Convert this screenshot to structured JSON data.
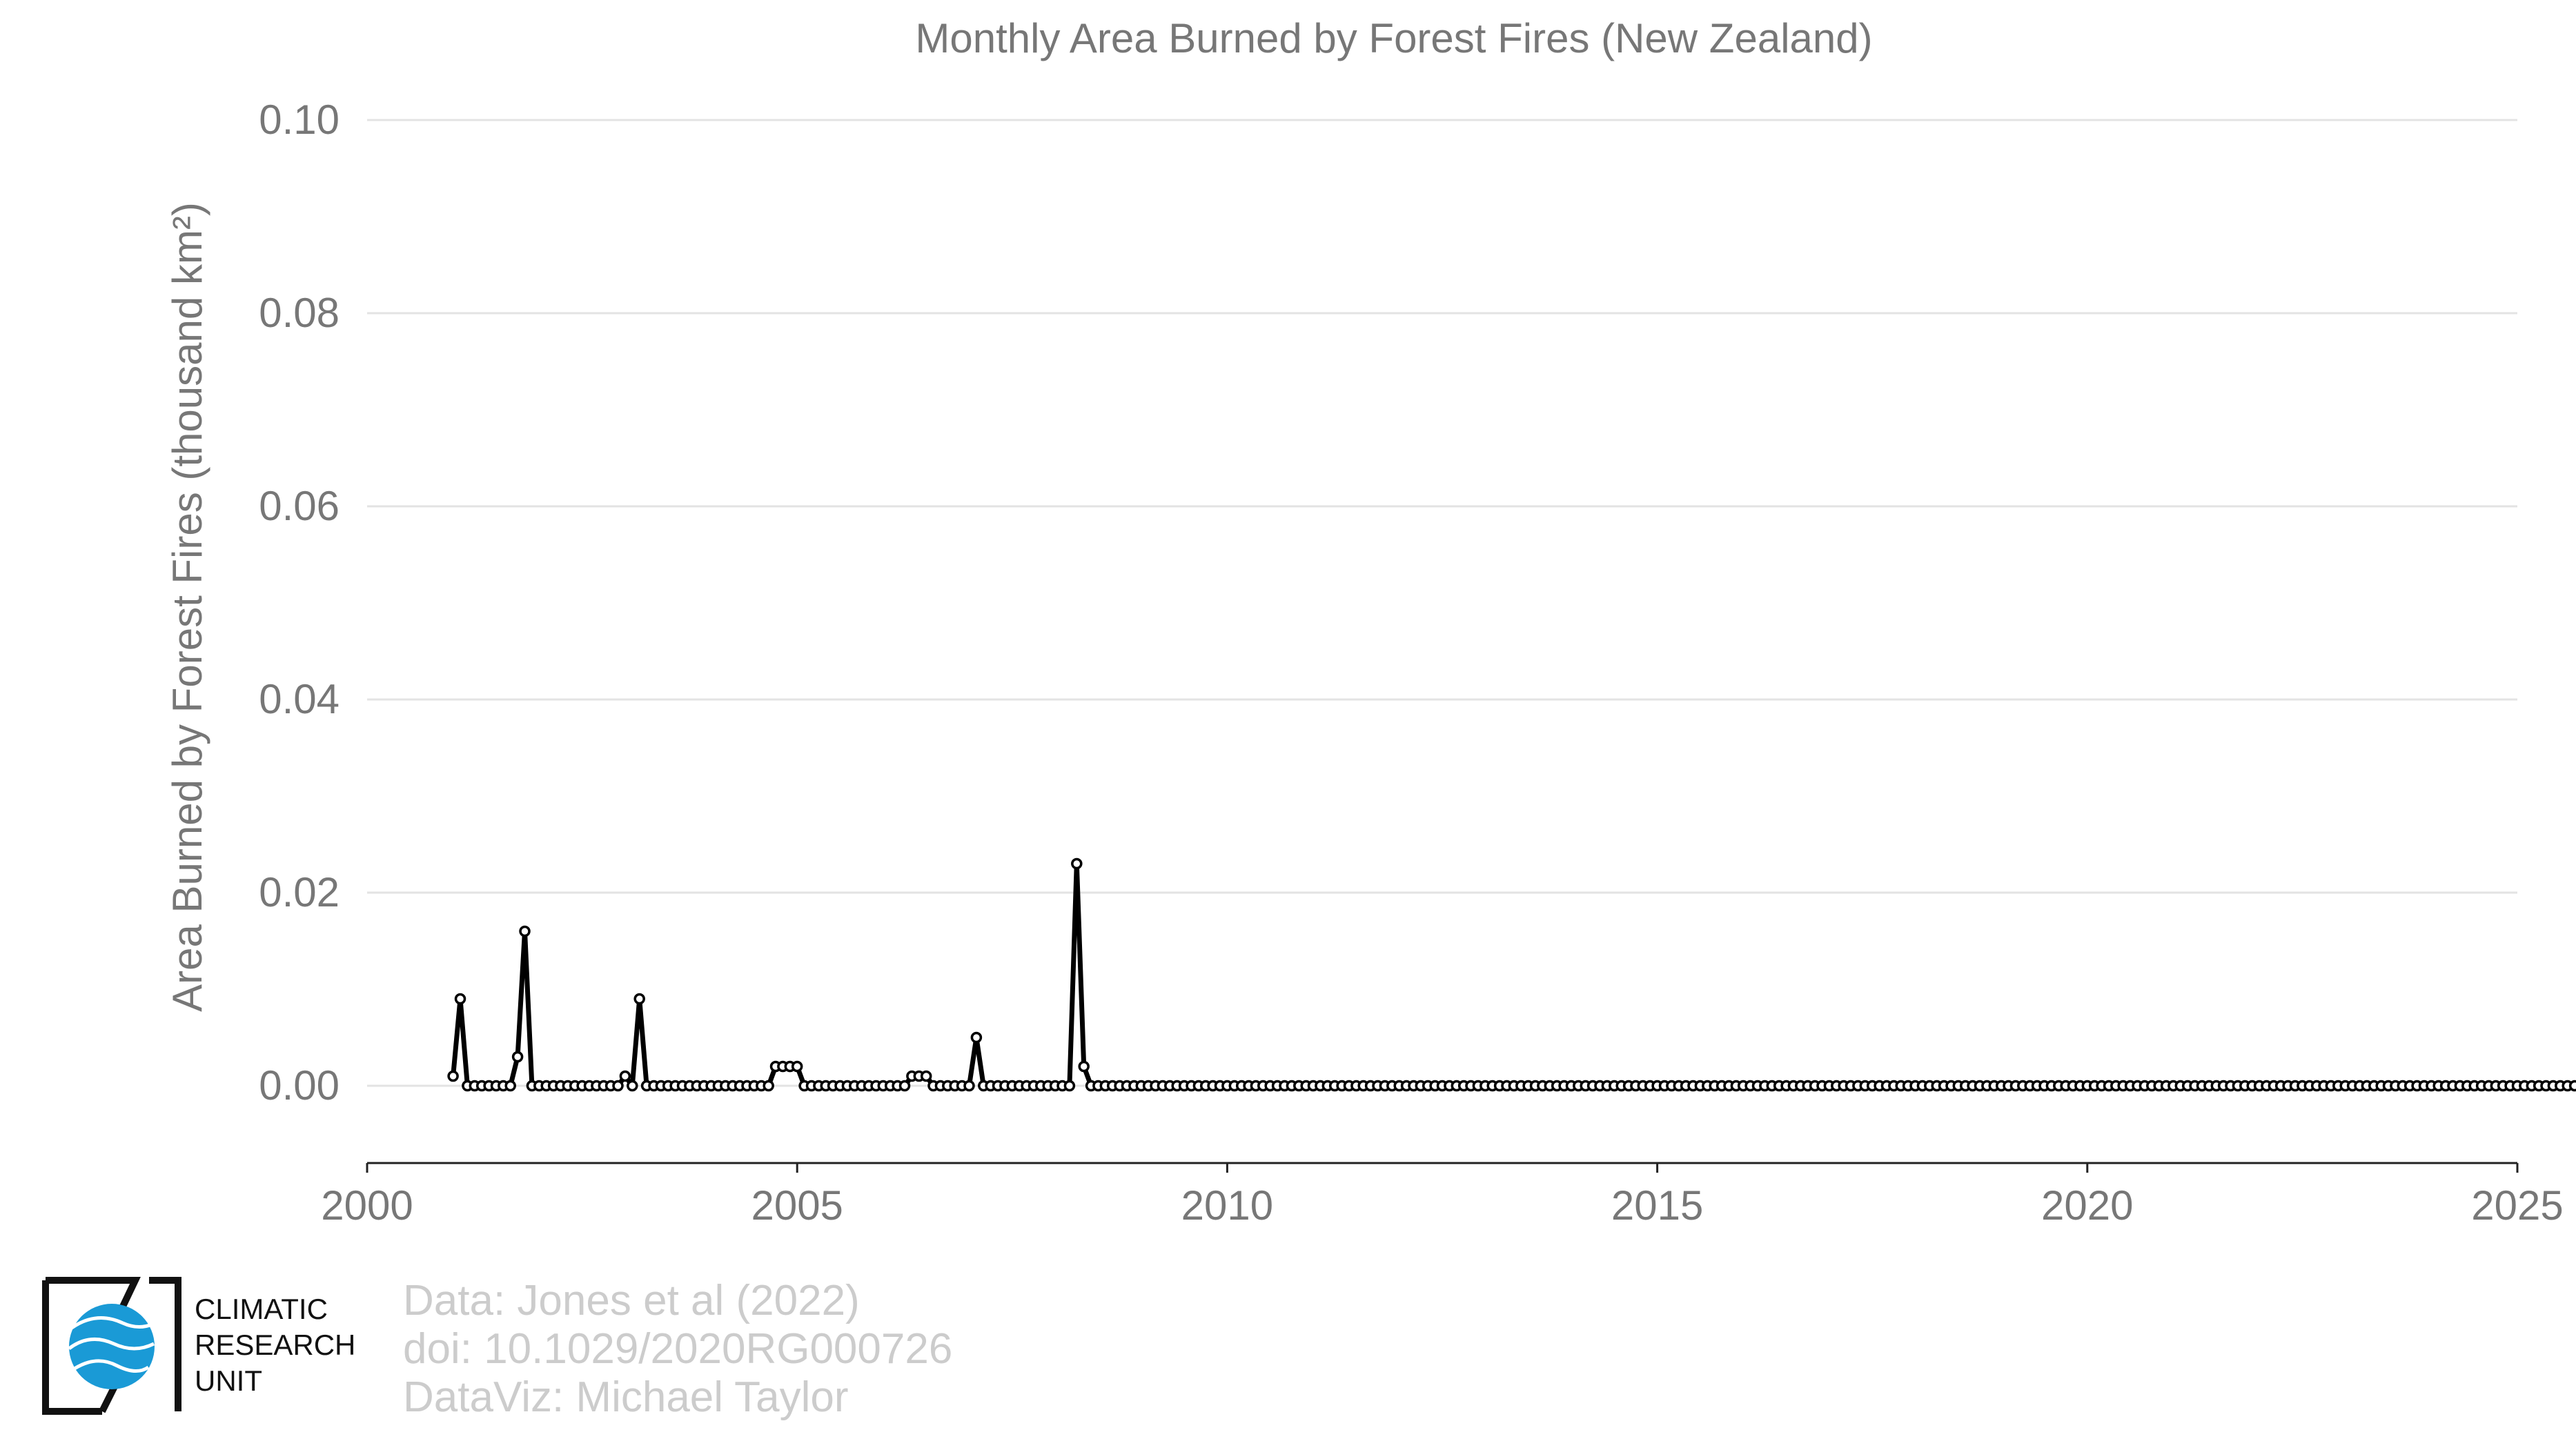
{
  "chart_data": {
    "type": "line",
    "title": "Monthly Area Burned by Forest Fires (New Zealand)",
    "xlabel": "",
    "ylabel": "Area Burned by Forest Fires (thousand km²)",
    "xlim": [
      2000,
      2025
    ],
    "ylim": [
      -0.008,
      0.1
    ],
    "x_ticks": [
      2000,
      2005,
      2010,
      2015,
      2020,
      2025
    ],
    "y_ticks": [
      "0.00",
      "0.02",
      "0.04",
      "0.06",
      "0.08",
      "0.10"
    ],
    "grid": "horizontal",
    "legend": "none",
    "series": [
      {
        "start_year": 2001,
        "start_month": 1,
        "values": [
          0.001,
          0.009,
          0,
          0,
          0,
          0,
          0,
          0,
          0,
          0.003,
          0.016,
          0,
          0,
          0,
          0,
          0,
          0,
          0,
          0,
          0,
          0,
          0,
          0,
          0,
          0.001,
          0,
          0.009,
          0,
          0,
          0,
          0,
          0,
          0,
          0,
          0,
          0,
          0,
          0,
          0,
          0,
          0,
          0,
          0,
          0,
          0,
          0.002,
          0.002,
          0.002,
          0.002,
          0,
          0,
          0,
          0,
          0,
          0,
          0,
          0,
          0,
          0,
          0,
          0,
          0,
          0,
          0,
          0.001,
          0.001,
          0.001,
          0,
          0,
          0,
          0,
          0,
          0,
          0.005,
          0,
          0,
          0,
          0,
          0,
          0,
          0,
          0,
          0,
          0,
          0,
          0,
          0,
          0.023,
          0.002,
          0,
          0,
          0,
          0,
          0,
          0,
          0,
          0,
          0,
          0,
          0,
          0,
          0,
          0,
          0,
          0,
          0,
          0,
          0,
          0,
          0,
          0,
          0,
          0,
          0,
          0,
          0,
          0,
          0,
          0,
          0,
          0,
          0,
          0,
          0,
          0,
          0,
          0,
          0,
          0,
          0,
          0,
          0,
          0,
          0,
          0,
          0,
          0,
          0,
          0,
          0,
          0,
          0,
          0,
          0,
          0,
          0,
          0,
          0,
          0,
          0,
          0,
          0,
          0,
          0,
          0,
          0,
          0,
          0,
          0,
          0,
          0,
          0,
          0,
          0,
          0,
          0,
          0,
          0,
          0,
          0,
          0,
          0,
          0,
          0,
          0,
          0,
          0,
          0,
          0,
          0,
          0,
          0,
          0,
          0,
          0,
          0,
          0,
          0,
          0,
          0,
          0,
          0,
          0,
          0,
          0,
          0,
          0,
          0,
          0,
          0,
          0,
          0,
          0,
          0,
          0,
          0,
          0,
          0,
          0,
          0,
          0,
          0,
          0,
          0,
          0,
          0,
          0,
          0,
          0,
          0,
          0,
          0,
          0,
          0,
          0,
          0,
          0,
          0,
          0,
          0,
          0,
          0,
          0,
          0,
          0,
          0,
          0,
          0,
          0,
          0,
          0,
          0,
          0,
          0,
          0,
          0,
          0,
          0,
          0,
          0,
          0,
          0,
          0,
          0,
          0,
          0,
          0,
          0,
          0,
          0,
          0,
          0,
          0,
          0,
          0,
          0,
          0,
          0,
          0,
          0,
          0,
          0,
          0,
          0,
          0,
          0,
          0,
          0,
          0,
          0,
          0,
          0,
          0,
          0,
          0,
          0,
          0,
          0,
          0,
          0,
          0,
          0,
          0,
          0,
          0,
          0,
          0,
          0,
          0,
          0,
          0,
          0,
          0,
          0,
          0,
          0,
          0,
          0,
          0,
          0,
          0,
          0,
          0,
          0,
          0,
          0,
          0,
          0,
          0,
          0,
          0,
          0,
          0,
          0,
          0,
          0,
          0,
          0,
          0,
          0,
          0,
          0,
          0,
          0,
          0,
          0,
          0,
          0,
          0,
          0,
          0,
          0,
          0,
          0,
          0,
          0,
          0,
          0,
          0,
          0,
          0,
          0,
          0,
          0,
          0,
          0,
          0,
          0,
          0,
          0,
          0,
          0,
          0,
          0,
          0,
          0,
          0,
          0,
          0,
          0,
          0,
          0,
          0,
          0,
          0,
          0,
          0,
          0,
          0,
          0,
          0,
          0,
          0,
          0,
          0,
          0,
          0,
          0,
          0,
          0,
          0,
          0,
          0,
          0,
          0,
          0,
          0,
          0,
          0,
          0,
          0,
          0,
          0,
          0,
          0,
          0,
          0,
          0,
          0,
          0,
          0,
          0,
          0,
          0,
          0,
          0,
          0,
          0,
          0,
          0,
          0,
          0,
          0,
          0,
          0,
          0,
          0,
          0,
          0,
          0,
          0,
          0
        ]
      }
    ]
  },
  "credits": {
    "line1": "Data: Jones et al (2022)",
    "line2": "doi: 10.1029/2020RG000726",
    "line3": "DataViz: Michael Taylor"
  },
  "logo": {
    "line1": "CLIMATIC",
    "line2": "RESEARCH",
    "line3": "UNIT",
    "globe_color": "#1a9ad6"
  }
}
